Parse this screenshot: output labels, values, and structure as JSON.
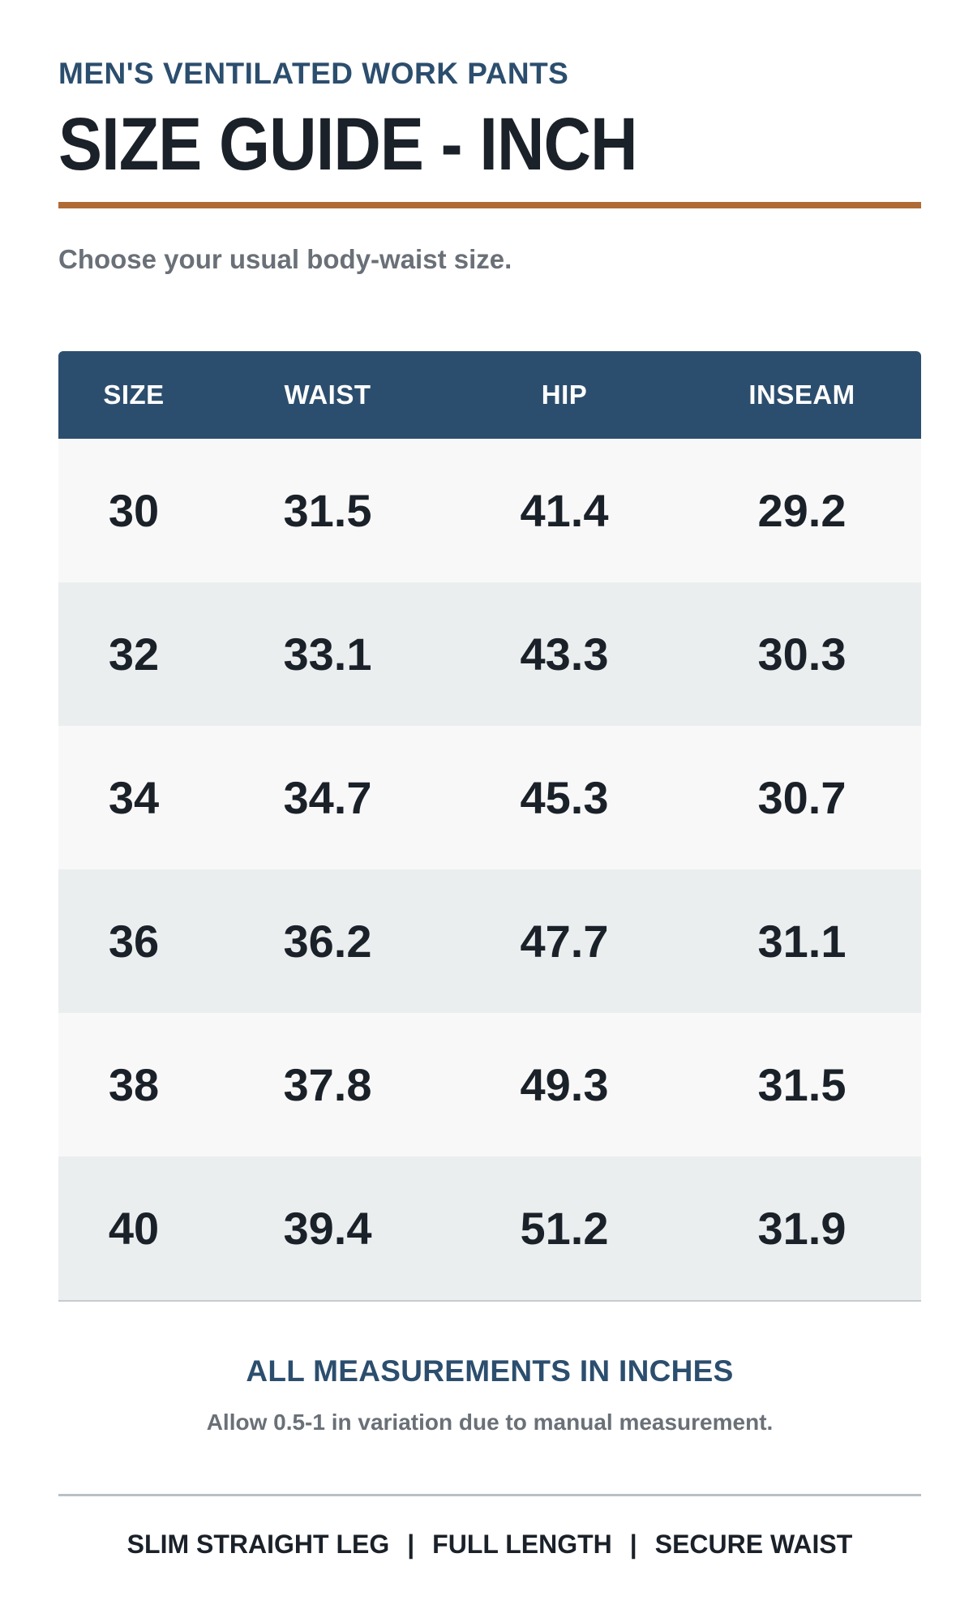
{
  "header": {
    "eyebrow": "MEN'S VENTILATED WORK PANTS",
    "title": "SIZE GUIDE - INCH",
    "subtitle": "Choose your usual body-waist size."
  },
  "colors": {
    "primary": "#2c4e6e",
    "accent": "#b06a36",
    "text_dark": "#1b2129",
    "text_muted": "#6a7077",
    "row_light": "#f8f8f8",
    "row_alt": "#ebeeef"
  },
  "table": {
    "columns": [
      "SIZE",
      "WAIST",
      "HIP",
      "INSEAM"
    ],
    "rows": [
      [
        "30",
        "31.5",
        "41.4",
        "29.2"
      ],
      [
        "32",
        "33.1",
        "43.3",
        "30.3"
      ],
      [
        "34",
        "34.7",
        "45.3",
        "30.7"
      ],
      [
        "36",
        "36.2",
        "47.7",
        "31.1"
      ],
      [
        "38",
        "37.8",
        "49.3",
        "31.5"
      ],
      [
        "40",
        "39.4",
        "51.2",
        "31.9"
      ]
    ]
  },
  "note": {
    "heading": "ALL MEASUREMENTS IN INCHES",
    "text": "Allow 0.5-1 in variation due to manual measurement."
  },
  "features": {
    "items": [
      "SLIM STRAIGHT LEG",
      "FULL LENGTH",
      "SECURE WAIST"
    ],
    "separator": "|"
  }
}
